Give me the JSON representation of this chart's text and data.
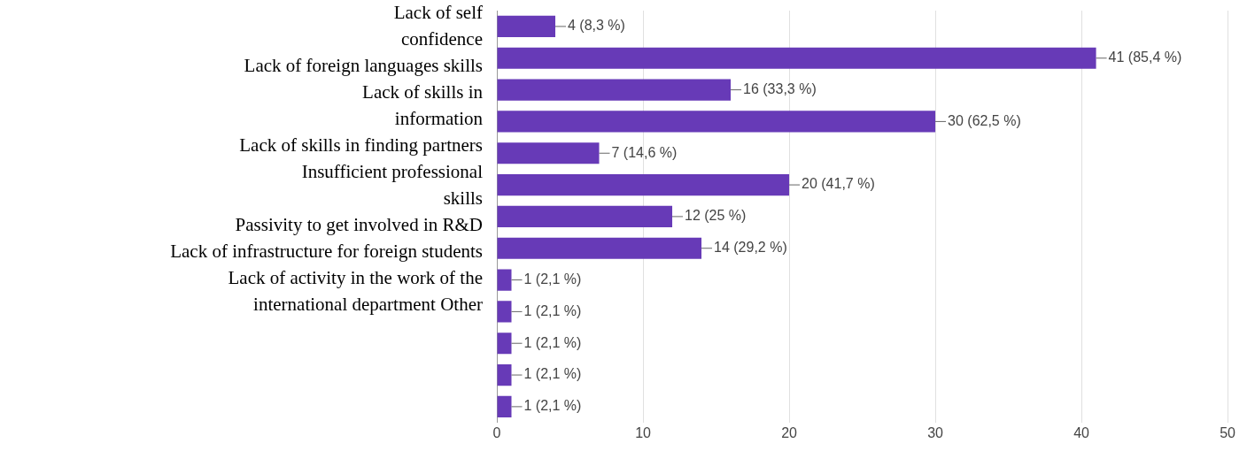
{
  "chart_data": {
    "type": "bar",
    "orientation": "horizontal",
    "categories": [
      null,
      null,
      null,
      null,
      null,
      null,
      null,
      null,
      null,
      null,
      null,
      null,
      null
    ],
    "values": [
      4,
      41,
      16,
      30,
      7,
      20,
      12,
      14,
      1,
      1,
      1,
      1,
      1
    ],
    "value_labels": [
      "4 (8,3 %)",
      "41 (85,4 %)",
      "16 (33,3 %)",
      "30 (62,5 %)",
      "7 (14,6 %)",
      "20 (41,7 %)",
      "12 (25 %)",
      "14 (29,2 %)",
      "1 (2,1 %)",
      "1 (2,1 %)",
      "1 (2,1 %)",
      "1 (2,1 %)",
      "1 (2,1 %)"
    ],
    "color": "#673ab7",
    "xlim": [
      0,
      50
    ],
    "xticks": [
      0,
      10,
      20,
      30,
      40,
      50
    ],
    "grid": "x",
    "annotations": [
      "Lack of self",
      "confidence",
      "Lack of foreign languages skills",
      "Lack of skills in",
      "information",
      "Lack of skills in finding partners",
      "Insufficient professional",
      "skills",
      "Passivity to get involved in R&D",
      "Lack of infrastructure for foreign students",
      "Lack of activity in the work of the",
      "international department Other"
    ]
  }
}
